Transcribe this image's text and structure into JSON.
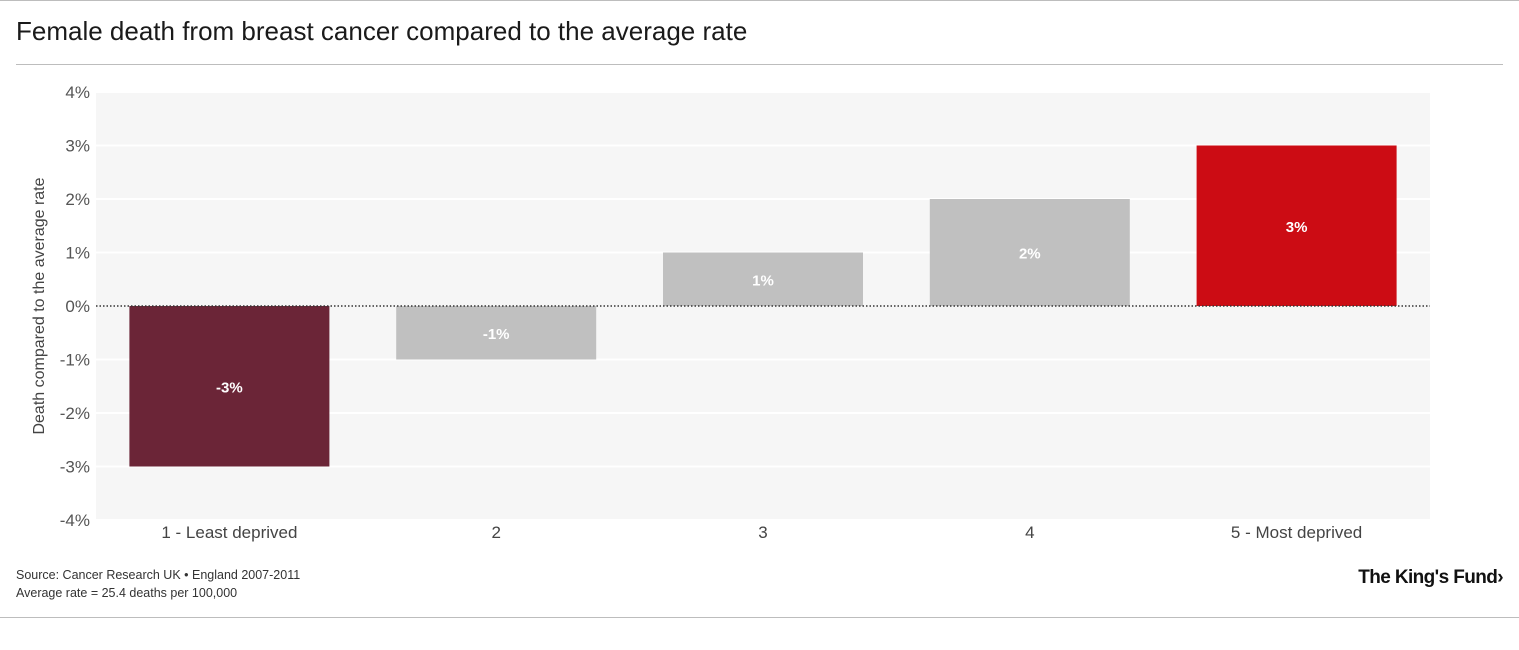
{
  "page": {
    "title": "Female death from breast cancer compared to the average rate",
    "source": "Source: Cancer Research UK • England 2007-2011",
    "note": "Average rate = 25.4 deaths per 100,000",
    "logo_text": "The King's Fund",
    "logo_icon": "chevron-right-icon"
  },
  "chart_data": {
    "type": "bar",
    "title": "Female death from breast cancer compared to the average rate",
    "xlabel": "",
    "ylabel": "Death compared to the average rate",
    "categories": [
      "1 - Least deprived",
      "2",
      "3",
      "4",
      "5 - Most deprived"
    ],
    "values": [
      -3,
      -1,
      1,
      2,
      3
    ],
    "data_labels": [
      "-3%",
      "-1%",
      "1%",
      "2%",
      "3%"
    ],
    "bar_colors": [
      "#6b2537",
      "#c0c0c0",
      "#c0c0c0",
      "#c0c0c0",
      "#cc0c14"
    ],
    "ylim": [
      -4,
      4
    ],
    "yticks": [
      4,
      3,
      2,
      1,
      0,
      -1,
      -2,
      -3,
      -4
    ],
    "ytick_labels": [
      "4%",
      "3%",
      "2%",
      "1%",
      "0%",
      "-1%",
      "-2%",
      "-3%",
      "-4%"
    ],
    "grid": true,
    "baseline_style": "dotted",
    "legend": "none",
    "plot_background": "#f6f6f6"
  }
}
